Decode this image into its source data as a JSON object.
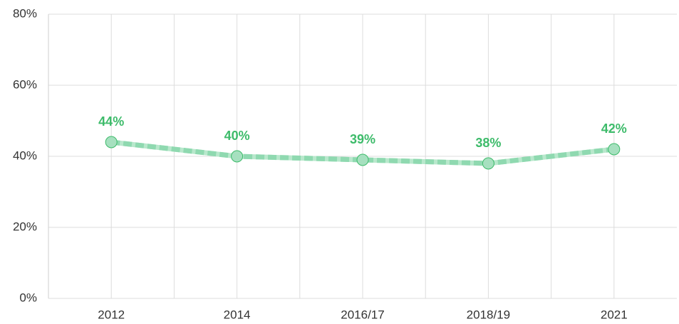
{
  "chart_data": {
    "type": "line",
    "categories": [
      "2012",
      "2014",
      "2016/17",
      "2018/19",
      "2021"
    ],
    "series": [
      {
        "color": "#3dbb6a",
        "values": [
          44,
          40,
          39,
          38,
          42
        ],
        "value_labels": [
          "44%",
          "40%",
          "39%",
          "38%",
          "42%"
        ]
      }
    ],
    "ylim": [
      0,
      80
    ],
    "yticks": [
      {
        "value": 0,
        "label": "0%"
      },
      {
        "value": 20,
        "label": "20%"
      },
      {
        "value": 40,
        "label": "40%"
      },
      {
        "value": 60,
        "label": "60%"
      },
      {
        "value": 80,
        "label": "80%"
      }
    ],
    "grid": true
  }
}
